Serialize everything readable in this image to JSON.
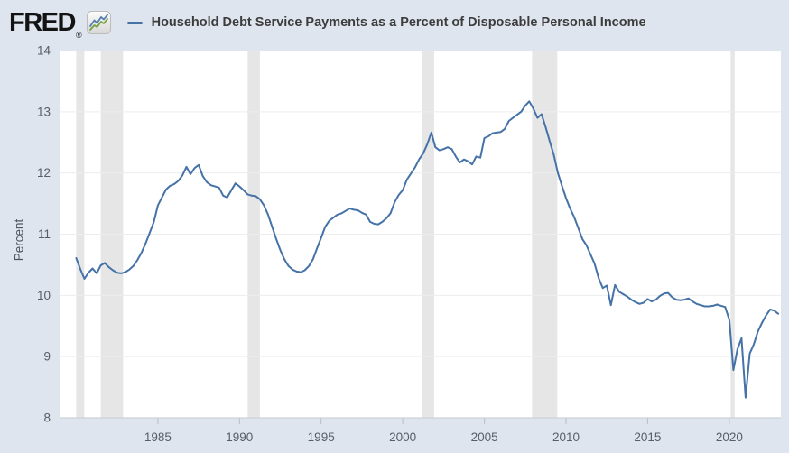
{
  "header": {
    "logo": "FRED",
    "registered": "®",
    "series_title": "Household Debt Service Payments as a Percent of Disposable Personal Income"
  },
  "colors": {
    "line": "#4572a7",
    "background": "#dfe5ef",
    "plot_background": "#ffffff",
    "recession_band": "#e6e6e6",
    "gridline": "#ebedef",
    "axis_line": "#c6cbd2"
  },
  "chart_data": {
    "type": "line",
    "title": "Household Debt Service Payments as a Percent of Disposable Personal Income",
    "xlabel": "",
    "ylabel": "Percent",
    "frequency": "Quarterly",
    "x_start": 1980.0,
    "x_step": 0.25,
    "values": [
      10.61,
      10.43,
      10.27,
      10.37,
      10.44,
      10.36,
      10.49,
      10.53,
      10.46,
      10.41,
      10.37,
      10.36,
      10.38,
      10.42,
      10.48,
      10.58,
      10.7,
      10.85,
      11.02,
      11.2,
      11.47,
      11.6,
      11.73,
      11.79,
      11.82,
      11.87,
      11.96,
      12.1,
      11.98,
      12.08,
      12.13,
      11.95,
      11.85,
      11.8,
      11.78,
      11.76,
      11.63,
      11.6,
      11.72,
      11.83,
      11.78,
      11.72,
      11.65,
      11.63,
      11.62,
      11.57,
      11.47,
      11.32,
      11.12,
      10.92,
      10.74,
      10.59,
      10.48,
      10.42,
      10.39,
      10.38,
      10.41,
      10.48,
      10.59,
      10.77,
      10.94,
      11.12,
      11.22,
      11.27,
      11.32,
      11.34,
      11.38,
      11.42,
      11.4,
      11.39,
      11.35,
      11.32,
      11.2,
      11.17,
      11.16,
      11.2,
      11.26,
      11.34,
      11.52,
      11.64,
      11.72,
      11.89,
      11.99,
      12.09,
      12.22,
      12.32,
      12.47,
      12.66,
      12.42,
      12.37,
      12.39,
      12.42,
      12.39,
      12.27,
      12.17,
      12.22,
      12.19,
      12.14,
      12.27,
      12.25,
      12.57,
      12.6,
      12.65,
      12.66,
      12.67,
      12.72,
      12.85,
      12.9,
      12.95,
      13.0,
      13.1,
      13.17,
      13.05,
      12.9,
      12.96,
      12.75,
      12.52,
      12.3,
      12.0,
      11.79,
      11.59,
      11.42,
      11.28,
      11.1,
      10.92,
      10.82,
      10.67,
      10.52,
      10.28,
      10.12,
      10.16,
      9.84,
      10.17,
      10.06,
      10.02,
      9.98,
      9.93,
      9.89,
      9.86,
      9.88,
      9.94,
      9.9,
      9.93,
      9.99,
      10.03,
      10.04,
      9.97,
      9.93,
      9.92,
      9.93,
      9.95,
      9.9,
      9.86,
      9.84,
      9.82,
      9.82,
      9.83,
      9.85,
      9.83,
      9.81,
      9.6,
      8.78,
      9.12,
      9.3,
      8.33,
      9.05,
      9.2,
      9.41,
      9.55,
      9.67,
      9.77,
      9.75,
      9.7
    ],
    "xlim": [
      1978.98,
      2023.16
    ],
    "ylim": [
      8,
      14
    ],
    "x_ticks": [
      1985,
      1990,
      1995,
      2000,
      2005,
      2010,
      2015,
      2020
    ],
    "y_ticks": [
      8,
      9,
      10,
      11,
      12,
      13,
      14
    ],
    "grid": "horizontal",
    "legend_position": "top",
    "line_color": "#4572a7",
    "recession_color": "#e6e6e6",
    "recession_bands": [
      [
        1980.0,
        1980.5
      ],
      [
        1981.5,
        1982.87
      ],
      [
        1990.5,
        1991.25
      ],
      [
        2001.17,
        2001.92
      ],
      [
        2007.92,
        2009.46
      ],
      [
        2020.08,
        2020.33
      ]
    ]
  }
}
